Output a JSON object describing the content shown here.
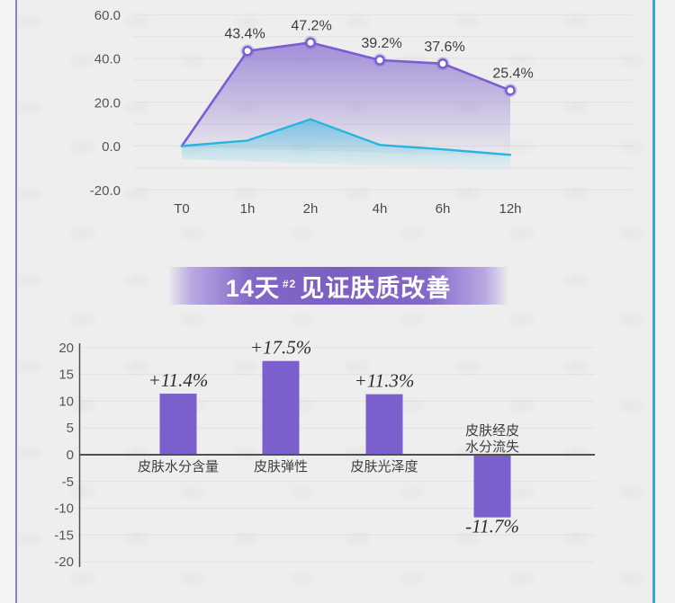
{
  "banner": {
    "text_prefix": "14天",
    "superscript": "#2",
    "text_suffix": "见证肤质改善",
    "bg_color": "#7a5ec2",
    "text_color": "#ffffff"
  },
  "accents": {
    "left_border_color": "#8c7cd8",
    "right_border_color": "#35a9d4",
    "page_bg": "#eeeeee"
  },
  "chart_data": [
    {
      "type": "line",
      "title": "",
      "x": [
        "T0",
        "1h",
        "2h",
        "4h",
        "6h",
        "12h"
      ],
      "series": [
        {
          "name": "",
          "color": "#7b5ed0",
          "values": [
            0,
            43.4,
            47.2,
            39.2,
            37.6,
            25.4
          ],
          "point_labels": [
            "",
            "43.4%",
            "47.2%",
            "39.2%",
            "37.6%",
            "25.4%"
          ],
          "area": true,
          "markers": true
        },
        {
          "name": "",
          "color": "#25b6e0",
          "values": [
            0,
            2.5,
            12.2,
            0.5,
            -1.5,
            -4
          ],
          "point_labels": [],
          "area": true,
          "markers": false
        }
      ],
      "ylim": [
        -20,
        60
      ],
      "ytick_values": [
        60,
        40,
        20,
        0,
        -20
      ],
      "ytick_labels": [
        "60.0",
        "40.0",
        "20.0",
        "0.0",
        "-20.0"
      ],
      "grid": true,
      "legend": "none"
    },
    {
      "type": "bar",
      "title": "",
      "categories": [
        "皮肤水分含量",
        "皮肤弹性",
        "皮肤光泽度",
        "皮肤经皮水分流失"
      ],
      "category_lines": [
        [
          "皮肤水分含量"
        ],
        [
          "皮肤弹性"
        ],
        [
          "皮肤光泽度"
        ],
        [
          "皮肤经皮",
          "水分流失"
        ]
      ],
      "values": [
        11.4,
        17.5,
        11.3,
        -11.7
      ],
      "value_labels": [
        "+11.4%",
        "+17.5%",
        "+11.3%",
        "-11.7%"
      ],
      "bar_color": "#7b60cd",
      "ylim": [
        -20,
        20
      ],
      "ytick_values": [
        20,
        15,
        10,
        5,
        0,
        -5,
        -10,
        -15,
        -20
      ],
      "grid": true,
      "legend": "none"
    }
  ]
}
